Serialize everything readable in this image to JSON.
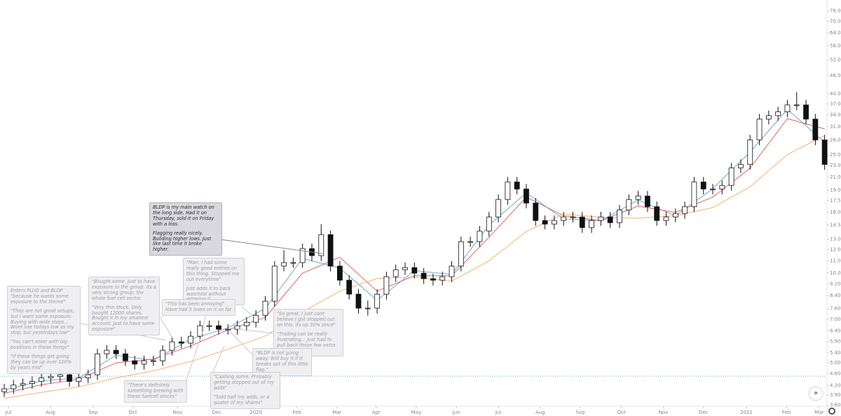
{
  "chart_data": {
    "type": "candlestick",
    "log_scale": true,
    "xlim": [
      -0.45,
      88.1
    ],
    "xticks": [
      {
        "value": 0.45,
        "label": "Jul"
      },
      {
        "value": 4.96,
        "label": "Aug"
      },
      {
        "value": 9.55,
        "label": "Sep"
      },
      {
        "value": 13.8,
        "label": "Oct"
      },
      {
        "value": 18.6,
        "label": "Nov"
      },
      {
        "value": 22.8,
        "label": "Dec"
      },
      {
        "value": 27.0,
        "label": "2020"
      },
      {
        "value": 31.4,
        "label": "Feb"
      },
      {
        "value": 35.7,
        "label": "Mar"
      },
      {
        "value": 39.9,
        "label": "Apr"
      },
      {
        "value": 44.2,
        "label": "May"
      },
      {
        "value": 48.5,
        "label": "Jun"
      },
      {
        "value": 53.0,
        "label": "Jul"
      },
      {
        "value": 57.5,
        "label": "Aug"
      },
      {
        "value": 61.8,
        "label": "Sep"
      },
      {
        "value": 66.2,
        "label": "Oct"
      },
      {
        "value": 70.7,
        "label": "Nov"
      },
      {
        "value": 75.0,
        "label": "Dec"
      },
      {
        "value": 79.6,
        "label": "2021"
      },
      {
        "value": 83.9,
        "label": "Feb"
      },
      {
        "value": 87.4,
        "label": "Mar"
      }
    ],
    "ylim": [
      3.48,
      80.4
    ],
    "yticks": [
      {
        "value": 76,
        "label": "76.00"
      },
      {
        "value": 70,
        "label": "70.00"
      },
      {
        "value": 64,
        "label": "64.00"
      },
      {
        "value": 58,
        "label": "58.00"
      },
      {
        "value": 52,
        "label": "52.00"
      },
      {
        "value": 46,
        "label": "46.00"
      },
      {
        "value": 40,
        "label": "40.00"
      },
      {
        "value": 37,
        "label": "37.00"
      },
      {
        "value": 34,
        "label": "34.00"
      },
      {
        "value": 31,
        "label": "31.00"
      },
      {
        "value": 28,
        "label": "28.00"
      },
      {
        "value": 25,
        "label": "25.00"
      },
      {
        "value": 23,
        "label": "23.00"
      },
      {
        "value": 21,
        "label": "21.00"
      },
      {
        "value": 19,
        "label": "19.00"
      },
      {
        "value": 17.5,
        "label": "17.50"
      },
      {
        "value": 16,
        "label": "16.00"
      },
      {
        "value": 14.5,
        "label": "14.50"
      },
      {
        "value": 13,
        "label": "13.00"
      },
      {
        "value": 12,
        "label": "12.00"
      },
      {
        "value": 11,
        "label": "11.00"
      },
      {
        "value": 10,
        "label": "10.00"
      },
      {
        "value": 9.2,
        "label": "9.20"
      },
      {
        "value": 8.4,
        "label": "8.40"
      },
      {
        "value": 7.6,
        "label": "7.60"
      },
      {
        "value": 7,
        "label": "7.00"
      },
      {
        "value": 6.4,
        "label": "6.40"
      },
      {
        "value": 5.9,
        "label": "5.90"
      },
      {
        "value": 5.4,
        "label": "5.40"
      },
      {
        "value": 5,
        "label": "5.00"
      },
      {
        "value": 4.6,
        "label": "4.60"
      },
      {
        "value": 4.2,
        "label": "4.20"
      },
      {
        "value": 3.9,
        "label": "3.90"
      },
      {
        "value": 3.6,
        "label": "3.60"
      }
    ],
    "up_color": "#ffffff",
    "down_color": "#111111",
    "wick_color": "#111111",
    "open": [
      4.0,
      4.09,
      4.21,
      4.26,
      4.33,
      4.45,
      4.5,
      4.56,
      4.33,
      4.45,
      4.56,
      5.36,
      5.51,
      5.36,
      5.08,
      4.95,
      5.08,
      5.08,
      5.51,
      5.88,
      5.82,
      6.14,
      6.66,
      6.66,
      6.48,
      6.48,
      6.66,
      6.84,
      7.22,
      8.05,
      10.56,
      10.85,
      10.85,
      12.09,
      11.45,
      13.47,
      10.56,
      9.47,
      8.5,
      7.63,
      7.63,
      8.5,
      9.73,
      10.27,
      10.44,
      10.0,
      9.58,
      9.47,
      9.73,
      10.56,
      12.76,
      12.76,
      13.84,
      15.43,
      17.67,
      20.23,
      19.16,
      17.19,
      15.02,
      14.61,
      15.02,
      15.43,
      15.43,
      14.22,
      15.02,
      15.43,
      14.77,
      16.29,
      17.67,
      18.15,
      16.72,
      15.02,
      15.43,
      15.85,
      16.72,
      20.23,
      19.16,
      19.16,
      19.69,
      22.55,
      23.17,
      28.0,
      32.9,
      33.8,
      34.8,
      36.7,
      36.7,
      32.9,
      28.0
    ],
    "high": [
      4.25,
      4.38,
      4.43,
      4.5,
      4.63,
      4.68,
      4.74,
      4.74,
      4.63,
      4.74,
      5.57,
      5.73,
      5.73,
      5.57,
      5.28,
      5.28,
      5.28,
      5.73,
      6.12,
      6.12,
      6.39,
      6.93,
      6.93,
      6.93,
      6.74,
      6.93,
      7.11,
      7.51,
      8.37,
      10.98,
      11.95,
      11.28,
      12.57,
      12.57,
      14.6,
      13.9,
      10.98,
      9.85,
      8.84,
      8.1,
      8.84,
      10.12,
      10.68,
      10.86,
      10.86,
      10.4,
      9.96,
      10.12,
      10.98,
      13.27,
      13.27,
      14.39,
      16.05,
      18.38,
      21.04,
      21.04,
      19.93,
      17.88,
      15.62,
      15.62,
      16.05,
      16.05,
      16.05,
      15.62,
      16.05,
      16.05,
      16.94,
      18.38,
      18.88,
      18.88,
      17.39,
      16.05,
      16.48,
      17.39,
      21.04,
      21.04,
      19.93,
      20.48,
      23.45,
      24.1,
      29.12,
      34.22,
      35.15,
      36.19,
      38.17,
      40.5,
      38.17,
      34.22,
      29.12
    ],
    "low": [
      3.84,
      3.93,
      4.04,
      4.09,
      4.16,
      4.27,
      4.32,
      4.16,
      4.16,
      4.27,
      4.38,
      5.15,
      5.15,
      4.88,
      4.75,
      4.75,
      4.88,
      4.88,
      5.29,
      5.59,
      5.59,
      5.89,
      6.39,
      6.22,
      6.22,
      6.22,
      6.39,
      6.57,
      6.93,
      7.73,
      10.14,
      10.42,
      10.42,
      10.99,
      10.99,
      10.14,
      9.09,
      8.16,
      7.32,
      7.2,
      7.32,
      8.16,
      9.34,
      9.86,
      9.6,
      9.2,
      9.09,
      9.09,
      9.34,
      10.14,
      12.25,
      12.25,
      13.29,
      14.81,
      16.96,
      18.39,
      16.5,
      14.42,
      14.03,
      14.03,
      14.42,
      14.81,
      13.65,
      13.65,
      14.42,
      14.18,
      14.18,
      15.64,
      16.96,
      16.05,
      14.42,
      14.42,
      14.81,
      15.22,
      16.05,
      18.39,
      18.39,
      18.39,
      18.9,
      21.65,
      22.24,
      26.88,
      31.58,
      32.45,
      33.41,
      35.23,
      31.58,
      26.88,
      22.24
    ],
    "close": [
      4.09,
      4.21,
      4.26,
      4.33,
      4.45,
      4.5,
      4.56,
      4.33,
      4.45,
      4.56,
      5.36,
      5.51,
      5.36,
      5.08,
      4.95,
      5.08,
      5.08,
      5.51,
      5.88,
      5.82,
      6.14,
      6.66,
      6.66,
      6.48,
      6.48,
      6.66,
      6.84,
      7.22,
      8.05,
      10.56,
      10.85,
      10.85,
      12.09,
      11.45,
      13.47,
      10.56,
      9.47,
      8.5,
      7.63,
      7.63,
      8.5,
      9.73,
      10.27,
      10.44,
      10.0,
      9.58,
      9.47,
      9.73,
      10.56,
      12.76,
      12.76,
      13.84,
      15.43,
      17.67,
      20.23,
      19.16,
      17.19,
      15.02,
      14.61,
      15.02,
      15.43,
      15.43,
      14.22,
      15.02,
      15.43,
      14.77,
      16.29,
      17.67,
      18.15,
      16.72,
      15.02,
      15.43,
      15.85,
      16.72,
      20.23,
      19.16,
      19.16,
      19.69,
      22.55,
      23.17,
      28.0,
      32.9,
      33.8,
      34.8,
      36.7,
      36.7,
      32.9,
      28.0,
      23.17
    ],
    "lines": [
      {
        "color": "#6fa8dc",
        "x": [
          0,
          4,
          8,
          12,
          16,
          20,
          24,
          28,
          32,
          36,
          40,
          44,
          48,
          52,
          56,
          60,
          64,
          68,
          72,
          76,
          80,
          84,
          88
        ],
        "values": [
          4.05,
          4.35,
          4.45,
          5.3,
          5.1,
          6.0,
          6.55,
          7.6,
          11.2,
          10.4,
          8.1,
          10.2,
          9.9,
          14.5,
          18.6,
          15.2,
          15.0,
          17.6,
          15.6,
          19.2,
          25.5,
          35.5,
          27.5
        ]
      },
      {
        "color": "#e06666",
        "x": [
          0,
          4,
          8,
          12,
          16,
          20,
          24,
          28,
          32,
          36,
          40,
          44,
          48,
          52,
          56,
          60,
          64,
          68,
          72,
          76,
          80,
          84,
          88
        ],
        "values": [
          3.95,
          4.22,
          4.4,
          5.0,
          5.15,
          5.7,
          6.45,
          7.1,
          10.0,
          11.3,
          8.7,
          9.8,
          9.8,
          13.2,
          18.0,
          15.6,
          15.0,
          16.8,
          16.0,
          18.0,
          22.5,
          33.0,
          30.5
        ]
      },
      {
        "color": "#f6b26b",
        "x": [
          0,
          4,
          8,
          12,
          16,
          20,
          24,
          28,
          32,
          36,
          40,
          44,
          48,
          52,
          56,
          60,
          64,
          68,
          72,
          76,
          80,
          84,
          88
        ],
        "values": [
          3.8,
          3.98,
          4.15,
          4.45,
          4.7,
          5.05,
          5.55,
          6.15,
          7.4,
          8.7,
          9.6,
          9.7,
          9.4,
          11.0,
          13.8,
          15.8,
          15.4,
          15.3,
          15.6,
          16.6,
          19.5,
          25.0,
          29.0
        ]
      }
    ],
    "hline": {
      "value": 4.51,
      "color": "#6fa8dc"
    },
    "annotations": [
      {
        "paragraphs": [
          "BLDP is my main watch on the long side. Had it on Thursday, sold it on Friday with a loss.",
          "Flagging really nicely. Building higher lows. Just like last time it broke higher."
        ]
      },
      {
        "paragraphs": [
          "\"Man, I had some really good entries on this thing. Stopped me out everytime\"",
          "Just adds it to back watchlist without entering it"
        ]
      },
      {
        "paragraphs": [
          "\"Bought some. Just to have exposure to the group. Its a very strong group, the whole fuel cell sector.",
          "\"Very thin stock. Only bought 12000 shares. Bought it in my smallest account. Just to have some exposure\""
        ]
      },
      {
        "paragraphs": [
          "Enters PLUG and BLDP \"because he wants some exposure to the theme\"",
          "\"They are not great setups, but I want some exposure. Buying with wide stops... Wont use todays low as my stop, but yesterdays low\"",
          "\"You can't enter with big positions in these things\"",
          "\"If these things get going they can be up over 100% by years end\""
        ]
      },
      {
        "paragraphs": [
          "\"This has been annoying\" Have had 3 loses on it so far"
        ]
      },
      {
        "paragraphs": [
          "\"So great, I just cant believe I got stopped out on this. Its up 30% since\"",
          "\"Trading can be really frustrating... Just had to pull back those few extra cents\""
        ]
      },
      {
        "paragraphs": [
          "\"BLDP is not going away. Will buy it if it breaks out of this little flag.\""
        ]
      },
      {
        "paragraphs": [
          "\"There's definitely something brewing with these fuelcell stocks\""
        ]
      },
      {
        "paragraphs": [
          "\"Cashing some. Probably getting stopped out of my adds\"",
          "\"Sold half my adds, or a quater of my shares\""
        ]
      }
    ]
  }
}
